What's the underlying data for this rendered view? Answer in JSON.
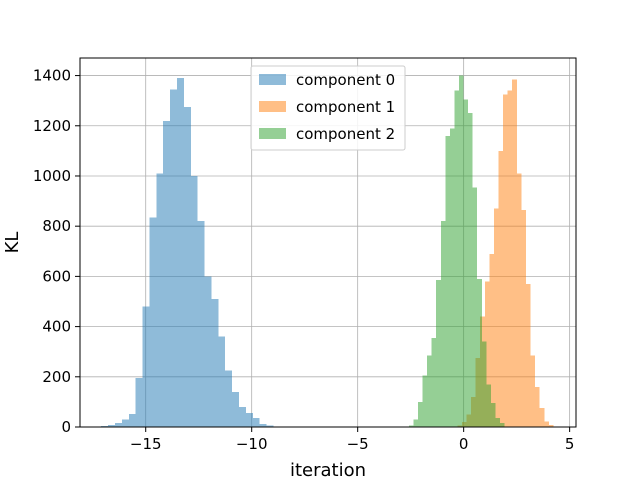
{
  "chart_data": {
    "type": "histogram",
    "xlabel": "iteration",
    "ylabel": "KL",
    "xlim": [
      -18.1,
      5.3
    ],
    "ylim": [
      0,
      1470
    ],
    "xticks": [
      -15,
      -10,
      -5,
      0,
      5
    ],
    "xtick_labels": [
      "−15",
      "−10",
      "−5",
      "0",
      "5"
    ],
    "yticks": [
      0,
      200,
      400,
      600,
      800,
      1000,
      1200,
      1400
    ],
    "ytick_labels": [
      "0",
      "200",
      "400",
      "600",
      "800",
      "1000",
      "1200",
      "1400"
    ],
    "grid": true,
    "legend_position": "upper-center",
    "alpha": 0.5,
    "series": [
      {
        "name": "component 0",
        "color": "#1f77b4",
        "bin_start": -17.1,
        "bin_width": 0.325,
        "counts": [
          3,
          8,
          15,
          30,
          52,
          195,
          480,
          835,
          1010,
          1220,
          1345,
          1390,
          1275,
          1000,
          820,
          600,
          510,
          360,
          225,
          140,
          80,
          55,
          35,
          12,
          5
        ]
      },
      {
        "name": "component 1",
        "color": "#ff7f0e",
        "bin_start": -0.3,
        "bin_width": 0.216,
        "counts": [
          5,
          20,
          50,
          120,
          275,
          440,
          580,
          690,
          870,
          1100,
          1325,
          1340,
          1385,
          1010,
          865,
          570,
          285,
          160,
          75,
          22,
          8
        ]
      },
      {
        "name": "component 2",
        "color": "#2ca02c",
        "bin_start": -2.8,
        "bin_width": 0.215,
        "counts": [
          1,
          5,
          30,
          100,
          205,
          285,
          355,
          585,
          820,
          1160,
          1190,
          1340,
          1400,
          1305,
          1250,
          955,
          590,
          340,
          170,
          95,
          35,
          15
        ]
      }
    ]
  }
}
